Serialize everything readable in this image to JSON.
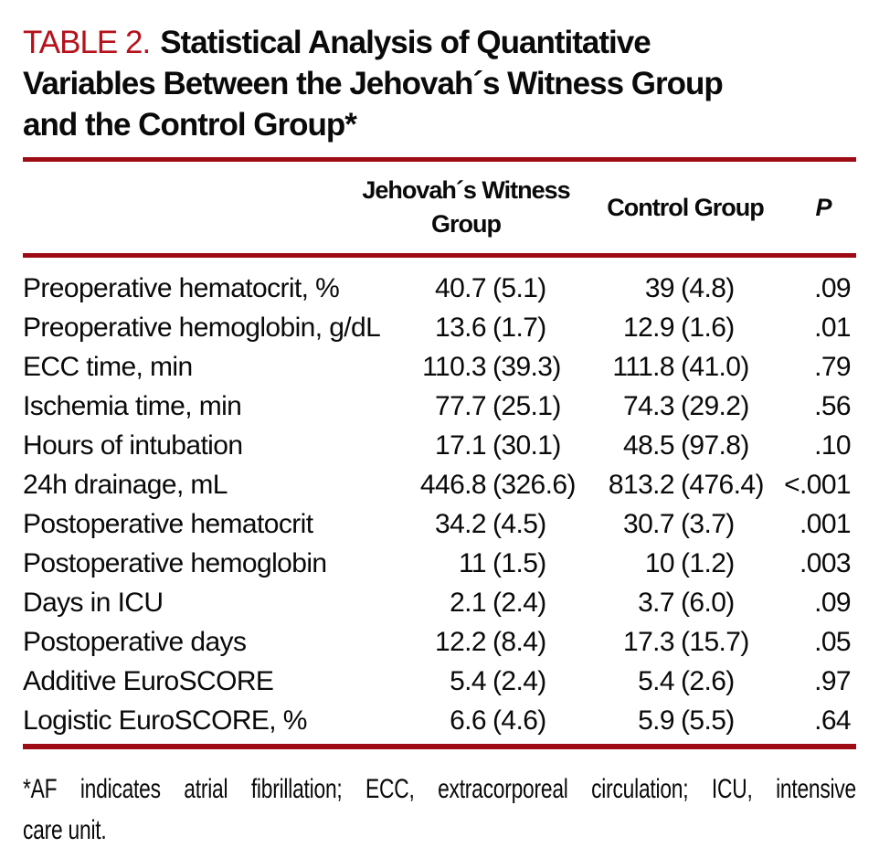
{
  "title": {
    "label": "TABLE 2.",
    "line1": "Statistical Analysis of Quantitative",
    "line2": "Variables Between the Jehovah´s Witness Group",
    "line3": "and the Control Group*"
  },
  "header": {
    "variable": "",
    "jw_group": "Jehovah´s Witness Group",
    "control_group": "Control Group",
    "p": "P"
  },
  "rows": [
    {
      "label": "Preoperative hematocrit, %",
      "jw_mean": "40.7",
      "jw_sd": "(5.1)",
      "control_mean": "39",
      "control_sd": "(4.8)",
      "p": ".09"
    },
    {
      "label": "Preoperative hemoglobin, g/dL",
      "jw_mean": "13.6",
      "jw_sd": "(1.7)",
      "control_mean": "12.9",
      "control_sd": "(1.6)",
      "p": ".01"
    },
    {
      "label": "ECC time, min",
      "jw_mean": "110.3",
      "jw_sd": "(39.3)",
      "control_mean": "111.8",
      "control_sd": "(41.0)",
      "p": ".79"
    },
    {
      "label": "Ischemia time, min",
      "jw_mean": "77.7",
      "jw_sd": "(25.1)",
      "control_mean": "74.3",
      "control_sd": "(29.2)",
      "p": ".56"
    },
    {
      "label": "Hours of intubation",
      "jw_mean": "17.1",
      "jw_sd": "(30.1)",
      "control_mean": "48.5",
      "control_sd": "(97.8)",
      "p": ".10"
    },
    {
      "label": "24h drainage, mL",
      "jw_mean": "446.8",
      "jw_sd": "(326.6)",
      "control_mean": "813.2",
      "control_sd": "(476.4)",
      "p": "<.001"
    },
    {
      "label": "Postoperative hematocrit",
      "jw_mean": "34.2",
      "jw_sd": "(4.5)",
      "control_mean": "30.7",
      "control_sd": "(3.7)",
      "p": ".001"
    },
    {
      "label": "Postoperative hemoglobin",
      "jw_mean": "11",
      "jw_sd": "(1.5)",
      "control_mean": "10",
      "control_sd": "(1.2)",
      "p": ".003"
    },
    {
      "label": "Days in ICU",
      "jw_mean": "2.1",
      "jw_sd": "(2.4)",
      "control_mean": "3.7",
      "control_sd": "(6.0)",
      "p": ".09"
    },
    {
      "label": "Postoperative days",
      "jw_mean": "12.2",
      "jw_sd": "(8.4)",
      "control_mean": "17.3",
      "control_sd": "(15.7)",
      "p": ".05"
    },
    {
      "label": "Additive EuroSCORE",
      "jw_mean": "5.4",
      "jw_sd": "(2.4)",
      "control_mean": "5.4",
      "control_sd": "(2.6)",
      "p": ".97"
    },
    {
      "label": "Logistic EuroSCORE, %",
      "jw_mean": "6.6",
      "jw_sd": "(4.6)",
      "control_mean": "5.9",
      "control_sd": "(5.5)",
      "p": ".64"
    }
  ],
  "footnote": {
    "line1": "*AF indicates atrial fibrillation; ECC, extracorporeal circulation; ICU, intensive",
    "line2": "care unit."
  },
  "colors": {
    "rule_red": "#9e0b14",
    "title_red": "#b5121c"
  }
}
